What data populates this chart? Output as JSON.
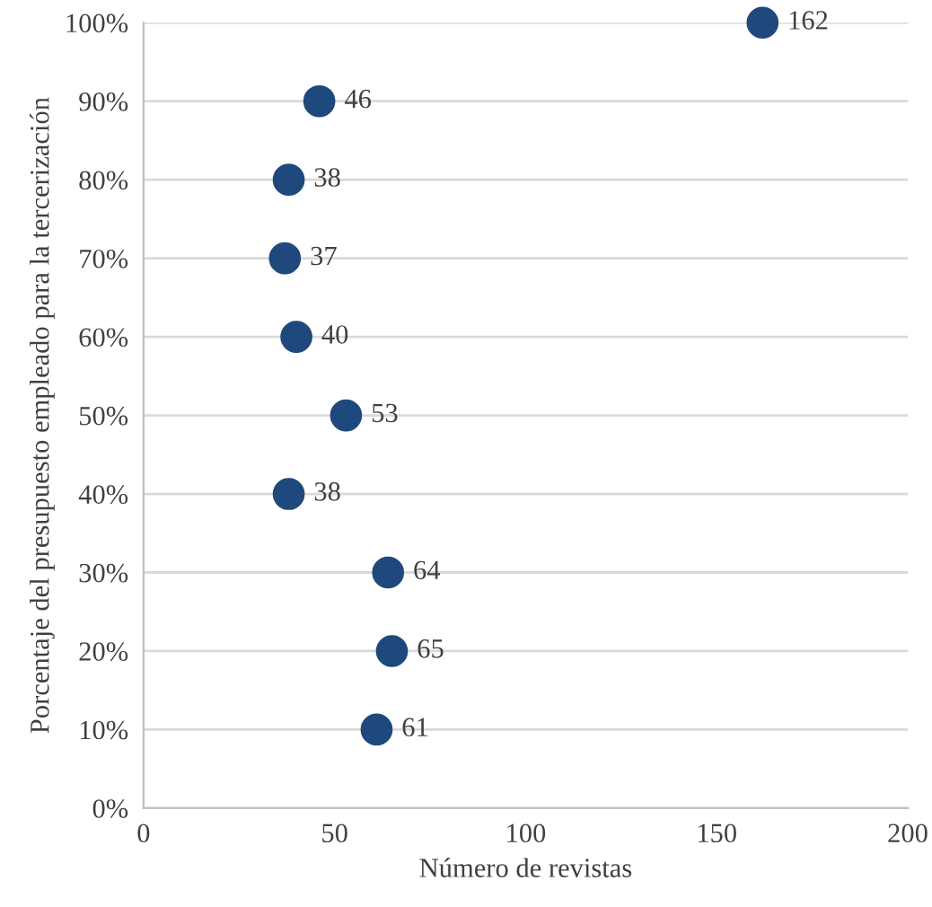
{
  "chart_data": {
    "type": "scatter",
    "xlabel": "Número de revistas",
    "ylabel": "Porcentaje del presupuesto empleado para la tercerización",
    "x": [
      162,
      46,
      38,
      37,
      40,
      53,
      38,
      64,
      65,
      61
    ],
    "values": [
      100,
      90,
      80,
      70,
      60,
      50,
      40,
      30,
      20,
      10
    ],
    "annotations": [
      {
        "text": "162",
        "x": 162,
        "y": 100
      },
      {
        "text": "46",
        "x": 46,
        "y": 90
      },
      {
        "text": "38",
        "x": 38,
        "y": 80
      },
      {
        "text": "37",
        "x": 37,
        "y": 70
      },
      {
        "text": "40",
        "x": 40,
        "y": 60
      },
      {
        "text": "53",
        "x": 53,
        "y": 50
      },
      {
        "text": "38",
        "x": 38,
        "y": 40
      },
      {
        "text": "64",
        "x": 64,
        "y": 30
      },
      {
        "text": "65",
        "x": 65,
        "y": 20
      },
      {
        "text": "61",
        "x": 61,
        "y": 10
      }
    ],
    "color": "#1f497d",
    "marker": "circle",
    "xlim": [
      0,
      200
    ],
    "xticks": [
      0,
      50,
      100,
      150,
      200
    ],
    "ylim": [
      0,
      100
    ],
    "yticks": [
      {
        "value": 0,
        "label": "0%"
      },
      {
        "value": 10,
        "label": "10%"
      },
      {
        "value": 20,
        "label": "20%"
      },
      {
        "value": 30,
        "label": "30%"
      },
      {
        "value": 40,
        "label": "40%"
      },
      {
        "value": 50,
        "label": "50%"
      },
      {
        "value": 60,
        "label": "60%"
      },
      {
        "value": 70,
        "label": "70%"
      },
      {
        "value": 80,
        "label": "80%"
      },
      {
        "value": 90,
        "label": "90%"
      },
      {
        "value": 100,
        "label": "100%"
      }
    ],
    "grid": "y"
  }
}
